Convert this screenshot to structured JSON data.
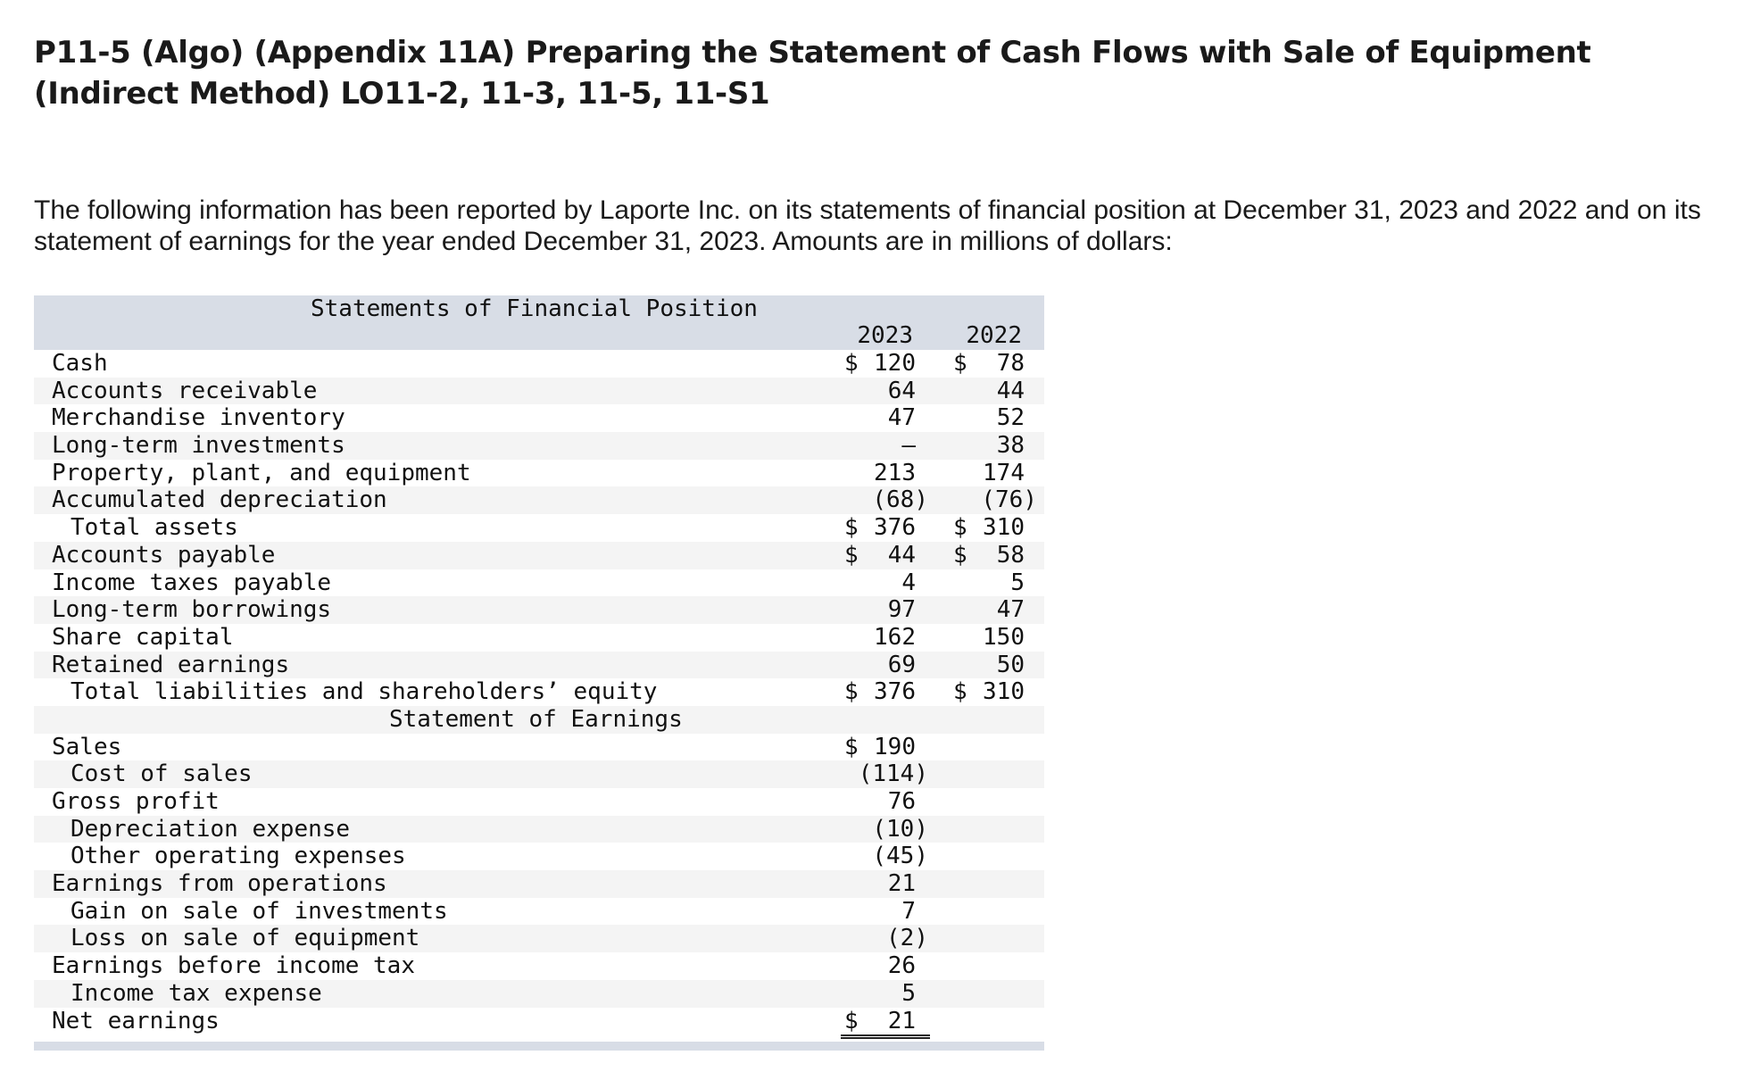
{
  "title": "P11-5 (Algo) (Appendix 11A) Preparing the Statement of Cash Flows with Sale of Equipment (Indirect Method) LO11-2, 11-3, 11-5, 11-S1",
  "intro": "The following information has been reported by Laporte Inc. on its statements of financial position at December 31, 2023 and 2022 and on its statement of earnings for the year ended December 31, 2023. Amounts are in millions of dollars:",
  "financial_position": {
    "heading": "Statements of Financial Position",
    "years": [
      "2023",
      "2022"
    ],
    "rows": [
      {
        "label": "Cash",
        "indent": false,
        "v1": "120",
        "d1": "$",
        "v2": "78",
        "d2": "$",
        "rule": ""
      },
      {
        "label": "Accounts receivable",
        "indent": false,
        "v1": "64",
        "d1": "",
        "v2": "44",
        "d2": "",
        "rule": ""
      },
      {
        "label": "Merchandise inventory",
        "indent": false,
        "v1": "47",
        "d1": "",
        "v2": "52",
        "d2": "",
        "rule": ""
      },
      {
        "label": "Long-term investments",
        "indent": false,
        "v1": "–",
        "d1": "",
        "v2": "38",
        "d2": "",
        "rule": ""
      },
      {
        "label": "Property, plant, and equipment",
        "indent": false,
        "v1": "213",
        "d1": "",
        "v2": "174",
        "d2": "",
        "rule": ""
      },
      {
        "label": "Accumulated depreciation",
        "indent": false,
        "v1": "(68)",
        "d1": "",
        "v2": "(76)",
        "d2": "",
        "rule": "ul"
      },
      {
        "label": "Total assets",
        "indent": true,
        "v1": "376",
        "d1": "$",
        "v2": "310",
        "d2": "$",
        "rule": "dul"
      },
      {
        "label": "Accounts payable",
        "indent": false,
        "v1": "44",
        "d1": "$",
        "v2": "58",
        "d2": "$",
        "rule": ""
      },
      {
        "label": "Income taxes payable",
        "indent": false,
        "v1": "4",
        "d1": "",
        "v2": "5",
        "d2": "",
        "rule": ""
      },
      {
        "label": "Long-term borrowings",
        "indent": false,
        "v1": "97",
        "d1": "",
        "v2": "47",
        "d2": "",
        "rule": ""
      },
      {
        "label": "Share capital",
        "indent": false,
        "v1": "162",
        "d1": "",
        "v2": "150",
        "d2": "",
        "rule": ""
      },
      {
        "label": "Retained earnings",
        "indent": false,
        "v1": "69",
        "d1": "",
        "v2": "50",
        "d2": "",
        "rule": "ul"
      },
      {
        "label": "Total liabilities and shareholders’ equity",
        "indent": true,
        "v1": "376",
        "d1": "$",
        "v2": "310",
        "d2": "$",
        "rule": "dul"
      }
    ]
  },
  "earnings": {
    "heading": "Statement of Earnings",
    "rows": [
      {
        "label": "Sales",
        "indent": false,
        "v1": "190",
        "d1": "$",
        "rule": ""
      },
      {
        "label": "Cost of sales",
        "indent": true,
        "v1": "(114)",
        "d1": "",
        "rule": "ul"
      },
      {
        "label": "Gross profit",
        "indent": false,
        "v1": "76",
        "d1": "",
        "rule": ""
      },
      {
        "label": "Depreciation expense",
        "indent": true,
        "v1": "(10)",
        "d1": "",
        "rule": ""
      },
      {
        "label": "Other operating expenses",
        "indent": true,
        "v1": "(45)",
        "d1": "",
        "rule": "ul"
      },
      {
        "label": "Earnings from operations",
        "indent": false,
        "v1": "21",
        "d1": "",
        "rule": ""
      },
      {
        "label": "Gain on sale of investments",
        "indent": true,
        "v1": "7",
        "d1": "",
        "rule": ""
      },
      {
        "label": "Loss on sale of equipment",
        "indent": true,
        "v1": "(2)",
        "d1": "",
        "rule": "ul"
      },
      {
        "label": "Earnings before income tax",
        "indent": false,
        "v1": "26",
        "d1": "",
        "rule": ""
      },
      {
        "label": "Income tax expense",
        "indent": true,
        "v1": "5",
        "d1": "",
        "rule": "ul"
      },
      {
        "label": "Net earnings",
        "indent": false,
        "v1": "21",
        "d1": "$",
        "rule": "dul"
      }
    ]
  }
}
